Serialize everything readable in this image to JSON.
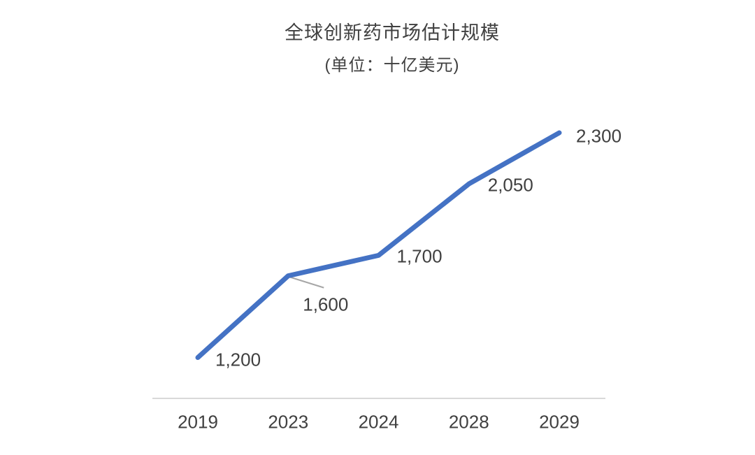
{
  "chart_data": {
    "type": "line",
    "title": "全球创新药市场估计规模",
    "subtitle": "(单位：十亿美元)",
    "categories": [
      "2019",
      "2023",
      "2024",
      "2028",
      "2029"
    ],
    "series": [
      {
        "name": "全球创新药市场估计规模",
        "values": [
          1200,
          1600,
          1700,
          2050,
          2300
        ],
        "labels": [
          "1,200",
          "1,600",
          "1,700",
          "2,050",
          "2,300"
        ]
      }
    ],
    "xlabel": "",
    "ylabel": "",
    "ylim": [
      1000,
      2400
    ],
    "grid": false,
    "legend": "none",
    "annotations": [
      {
        "type": "leader-line",
        "from_point": "2023",
        "to_label": "1,600"
      }
    ],
    "colors": {
      "line": "#4472C4",
      "axis_line": "#D9D9D9",
      "leader_line": "#A6A6A6",
      "text": "#404040",
      "background": "#FFFFFF"
    }
  }
}
